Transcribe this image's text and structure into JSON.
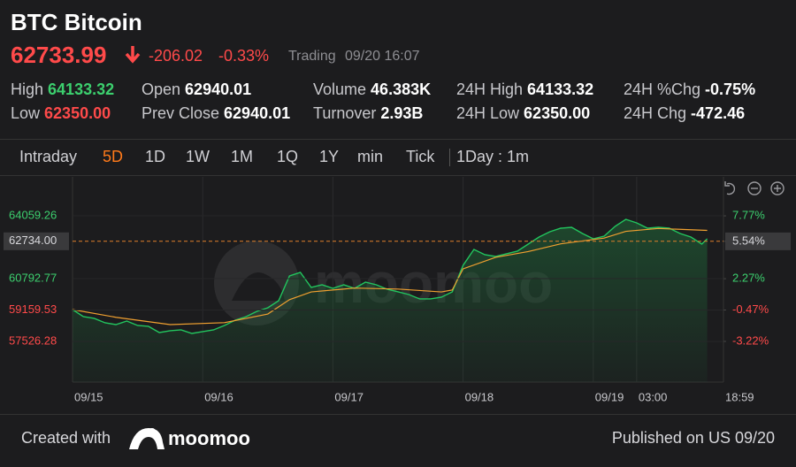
{
  "header": {
    "title": "BTC Bitcoin",
    "price": "62733.99",
    "change": "-206.02",
    "change_pct": "-0.33%",
    "status": "Trading",
    "time": "09/20 16:07"
  },
  "stats": [
    {
      "label": "High",
      "value": "64133.32",
      "color": "#3ccf6e"
    },
    {
      "label": "Low",
      "value": "62350.00",
      "color": "#ff4a4a"
    },
    {
      "label": "Open",
      "value": "62940.01",
      "color": "#ffffff"
    },
    {
      "label": "Prev Close",
      "value": "62940.01",
      "color": "#ffffff"
    },
    {
      "label": "Volume",
      "value": "46.383K",
      "color": "#ffffff"
    },
    {
      "label": "Turnover",
      "value": "2.93B",
      "color": "#ffffff"
    },
    {
      "label": "24H High",
      "value": "64133.32",
      "color": "#ffffff"
    },
    {
      "label": "24H Low",
      "value": "62350.00",
      "color": "#ffffff"
    },
    {
      "label": "24H %Chg",
      "value": "-0.75%",
      "color": "#ffffff"
    },
    {
      "label": "24H Chg",
      "value": "-472.46",
      "color": "#ffffff"
    }
  ],
  "tabs": [
    "Intraday",
    "5D",
    "1D",
    "1W",
    "1M",
    "1Q",
    "1Y",
    "min",
    "Tick"
  ],
  "active_tab": 1,
  "interval": "1Day : 1m",
  "watermark": "moomoo",
  "chart_data": {
    "type": "line",
    "x": [
      0,
      2,
      4,
      6,
      8,
      10,
      12,
      14,
      16,
      18,
      20,
      22,
      24,
      26,
      28,
      30,
      32,
      34,
      36,
      38,
      40,
      42,
      44,
      46,
      48,
      50,
      52,
      54,
      56,
      58,
      60,
      62,
      64,
      66,
      68,
      70,
      72,
      74,
      76,
      78,
      80,
      82,
      84,
      86,
      88,
      90,
      92,
      94,
      96,
      98,
      100,
      102,
      104,
      106,
      108,
      110,
      112,
      114,
      116,
      117
    ],
    "series": [
      {
        "name": "Price",
        "color": "#22c55e",
        "x": [
          0,
          2,
          4,
          6,
          8,
          10,
          12,
          14,
          16,
          18,
          20,
          22,
          24,
          26,
          28,
          30,
          32,
          34,
          36,
          38,
          40,
          42,
          44,
          46,
          48,
          50,
          52,
          54,
          56,
          58,
          60,
          62,
          64,
          66,
          68,
          70,
          72,
          74,
          76,
          78,
          80,
          82,
          84,
          86,
          88,
          90,
          92,
          94,
          96,
          98,
          100,
          102,
          104,
          106,
          108,
          110,
          112,
          114,
          116,
          117
        ],
        "values": [
          59183,
          58815,
          58723,
          58493,
          58401,
          58585,
          58355,
          58309,
          57987,
          58079,
          58125,
          57941,
          58033,
          58125,
          58355,
          58631,
          58815,
          59091,
          59275,
          59643,
          60931,
          61115,
          60333,
          60471,
          60287,
          60471,
          60287,
          60609,
          60471,
          60241,
          60103,
          59965,
          59735,
          59735,
          59827,
          60103,
          61483,
          62311,
          62035,
          61943,
          62081,
          62219,
          62587,
          62955,
          63231,
          63415,
          63461,
          63139,
          62863,
          63001,
          63507,
          63875,
          63691,
          63415,
          63461,
          63415,
          63139,
          62955,
          62587,
          62863
        ]
      },
      {
        "name": "Average",
        "color": "#f0a030",
        "x": [
          0,
          8,
          18,
          28,
          36,
          40,
          44,
          52,
          60,
          68,
          70,
          72,
          78,
          84,
          90,
          98,
          102,
          108,
          117
        ],
        "values": [
          59183,
          58780,
          58400,
          58500,
          58950,
          59700,
          60100,
          60300,
          60250,
          60100,
          60200,
          61300,
          61900,
          62200,
          62600,
          62900,
          63250,
          63400,
          63300
        ]
      }
    ],
    "xlim": [
      0,
      120
    ],
    "xticks": [
      {
        "value": 0,
        "label": "09/15"
      },
      {
        "value": 24,
        "label": "09/16"
      },
      {
        "value": 48,
        "label": "09/17"
      },
      {
        "value": 72,
        "label": "09/18"
      },
      {
        "value": 96,
        "label": "09/19"
      },
      {
        "value": 104,
        "label": "03:00"
      },
      {
        "value": 120,
        "label": "18:59"
      }
    ],
    "ylim": [
      55410,
      66083
    ],
    "yticks": [
      64059.26,
      {
        "value": 62734,
        "label": "62734.00"
      },
      60792.77,
      59159.53,
      57526.28
    ],
    "y2lim": [
      -6.78,
      11.18
    ],
    "y2ticks": [
      {
        "value": 7.77,
        "label": "7.77%"
      },
      {
        "value": 5.54,
        "label": "5.54%"
      },
      {
        "value": 2.27,
        "label": "2.27%"
      },
      {
        "value": -0.47,
        "label": "-0.47%"
      },
      {
        "value": -3.22,
        "label": "-3.22%"
      }
    ]
  },
  "footer": {
    "created": "Created with",
    "brand": "moomoo",
    "published": "Published on US 09/20"
  }
}
